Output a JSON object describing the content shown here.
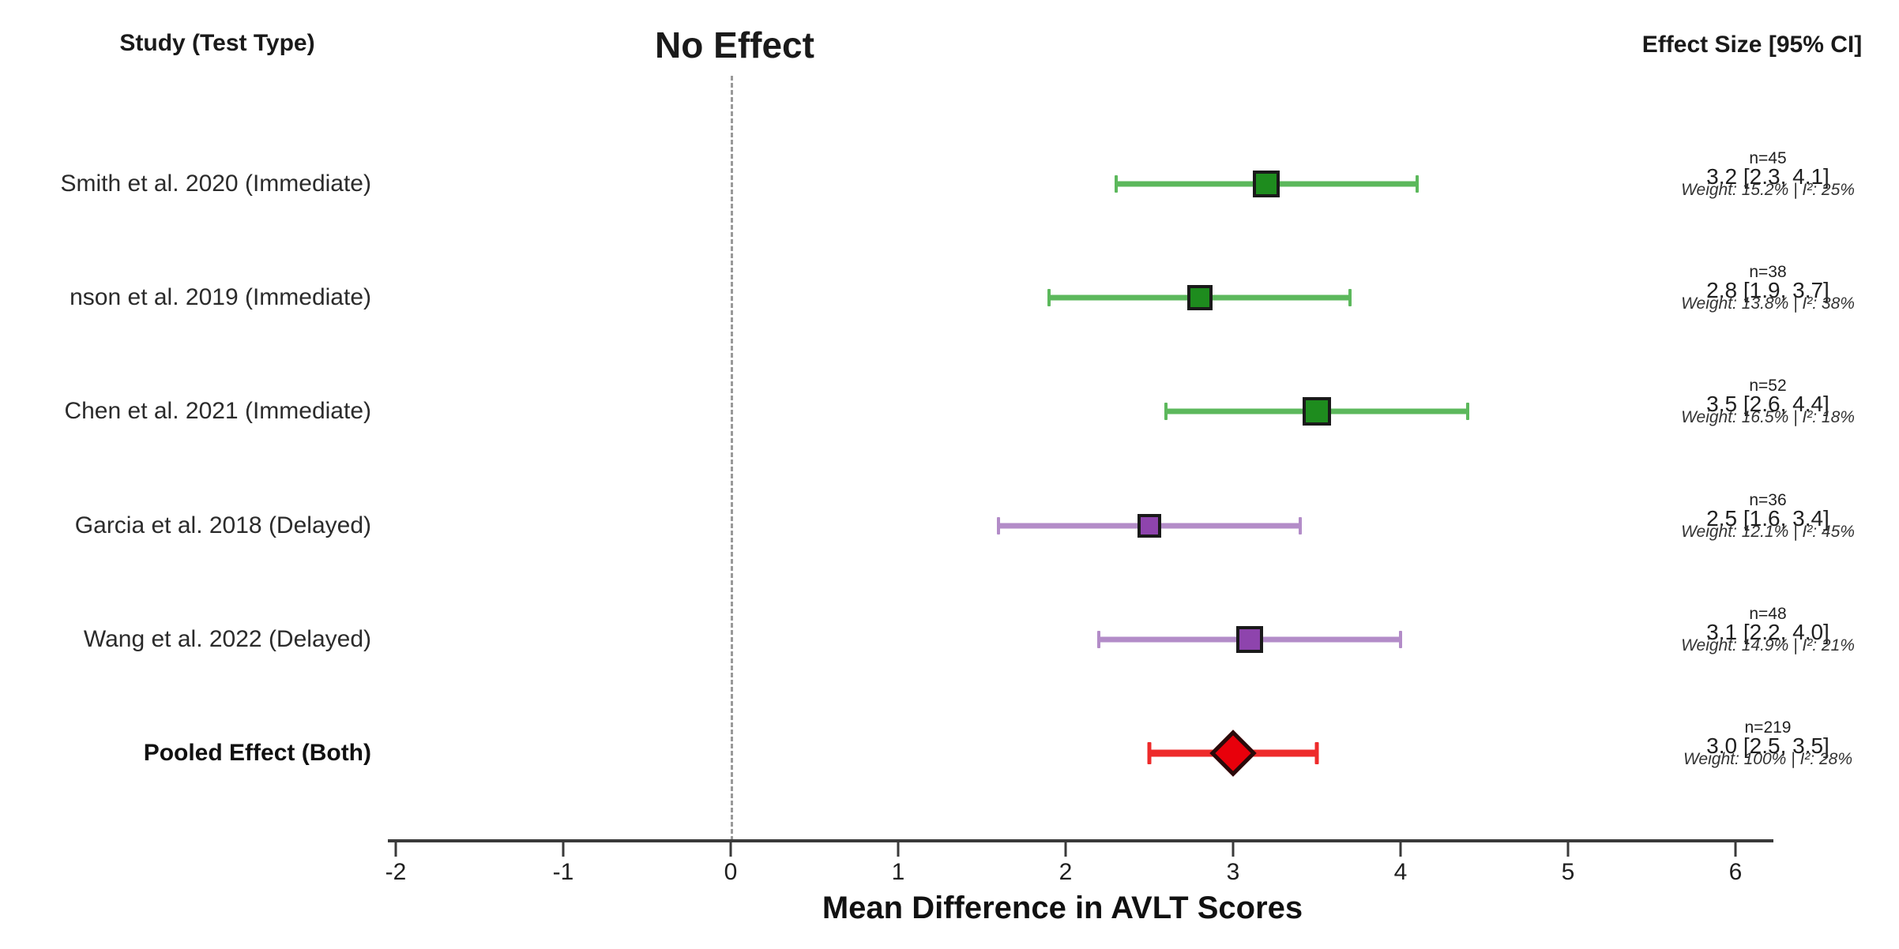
{
  "header": {
    "left": "Study (Test Type)",
    "center": "No Effect",
    "right": "Effect Size [95% CI]"
  },
  "colors": {
    "immediate_line": "#5cb85c",
    "immediate_fill": "#1e8c1e",
    "delayed_line": "#b38cc8",
    "delayed_fill": "#8e44ad",
    "pooled_line": "#ee2b2b",
    "pooled_fill": "#e8000b",
    "marker_border": "#1a1a1a",
    "zero_line": "#999999",
    "axis": "#3a3a3a"
  },
  "chart_data": {
    "type": "forest",
    "xlabel": "Mean Difference in AVLT Scores",
    "xlim": [
      -2,
      6
    ],
    "x_ticks": [
      -2,
      -1,
      0,
      1,
      2,
      3,
      4,
      5,
      6
    ],
    "zero_line_x": 0,
    "grid": false,
    "legend": "none",
    "studies": [
      {
        "label": "Smith et al. 2020 (Immediate)",
        "group": "immediate",
        "marker": "square",
        "n_label": "n=45",
        "effect": 3.2,
        "ci_low": 2.3,
        "ci_high": 4.1,
        "effect_label": "3.2 [2.3, 4.1]",
        "weight_pct": 15.2,
        "i2_pct": 25,
        "weight_label": "Weight: 15.2% | I²: 25%",
        "bold": false
      },
      {
        "label": "nson et al. 2019 (Immediate)",
        "group": "immediate",
        "marker": "square",
        "n_label": "n=38",
        "effect": 2.8,
        "ci_low": 1.9,
        "ci_high": 3.7,
        "effect_label": "2.8 [1.9, 3.7]",
        "weight_pct": 13.8,
        "i2_pct": 38,
        "weight_label": "Weight: 13.8% | I²: 38%",
        "bold": false
      },
      {
        "label": "Chen et al. 2021 (Immediate)",
        "group": "immediate",
        "marker": "square",
        "n_label": "n=52",
        "effect": 3.5,
        "ci_low": 2.6,
        "ci_high": 4.4,
        "effect_label": "3.5 [2.6, 4.4]",
        "weight_pct": 16.5,
        "i2_pct": 18,
        "weight_label": "Weight: 16.5% | I²: 18%",
        "bold": false
      },
      {
        "label": "Garcia et al. 2018 (Delayed)",
        "group": "delayed",
        "marker": "square",
        "n_label": "n=36",
        "effect": 2.5,
        "ci_low": 1.6,
        "ci_high": 3.4,
        "effect_label": "2.5 [1.6, 3.4]",
        "weight_pct": 12.1,
        "i2_pct": 45,
        "weight_label": "Weight: 12.1% | I²: 45%",
        "bold": false
      },
      {
        "label": "Wang et al. 2022 (Delayed)",
        "group": "delayed",
        "marker": "square",
        "n_label": "n=48",
        "effect": 3.1,
        "ci_low": 2.2,
        "ci_high": 4.0,
        "effect_label": "3.1 [2.2, 4.0]",
        "weight_pct": 14.9,
        "i2_pct": 21,
        "weight_label": "Weight: 14.9% | I²: 21%",
        "bold": false
      },
      {
        "label": "Pooled Effect (Both)",
        "group": "pooled",
        "marker": "diamond",
        "n_label": "n=219",
        "effect": 3.0,
        "ci_low": 2.5,
        "ci_high": 3.5,
        "effect_label": "3.0 [2.5, 3.5]",
        "weight_pct": 100,
        "i2_pct": 28,
        "weight_label": "Weight: 100% | I²: 28%",
        "bold": true
      }
    ]
  }
}
